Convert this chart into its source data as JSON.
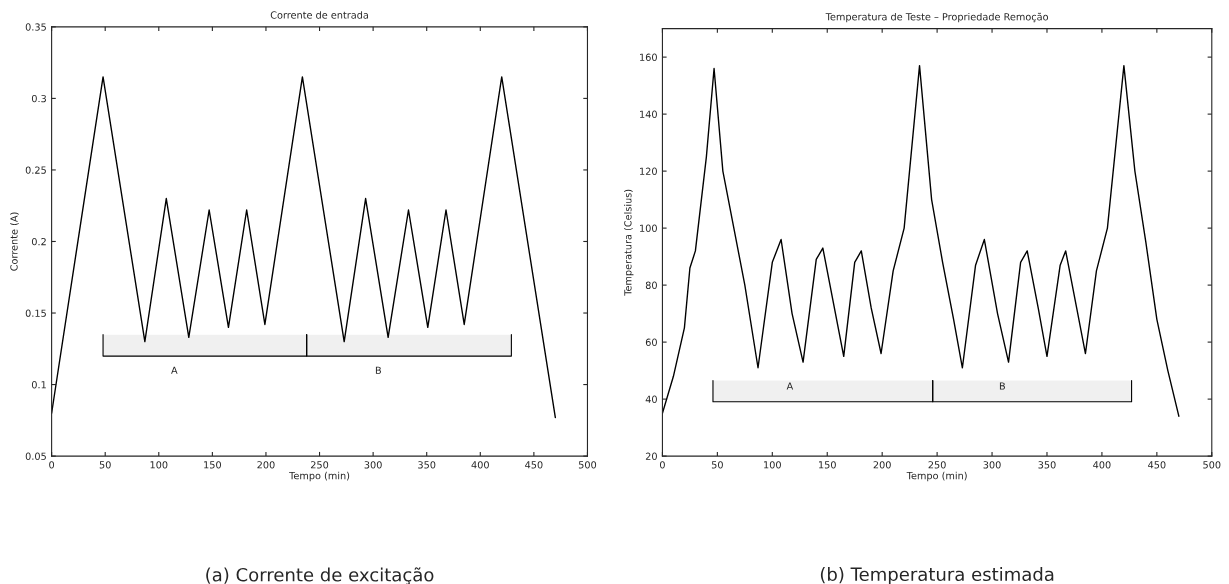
{
  "chart_data": [
    {
      "type": "line",
      "title": "Corrente de entrada",
      "xlabel": "Tempo (min)",
      "ylabel": "Corrente (A)",
      "x": [
        0,
        48,
        87,
        107,
        128,
        147,
        165,
        182,
        199,
        234,
        273,
        293,
        314,
        333,
        351,
        368,
        385,
        420,
        470
      ],
      "series": [
        {
          "color": "#000000",
          "values": [
            0.08,
            0.315,
            0.13,
            0.23,
            0.133,
            0.222,
            0.14,
            0.222,
            0.142,
            0.315,
            0.13,
            0.23,
            0.133,
            0.222,
            0.14,
            0.222,
            0.142,
            0.315,
            0.077
          ]
        }
      ],
      "xlim": [
        0,
        500
      ],
      "xticks": [
        0,
        50,
        100,
        150,
        200,
        250,
        300,
        350,
        400,
        450,
        500
      ],
      "ylim": [
        0.05,
        0.35
      ],
      "yticks": [
        0.05,
        0.1,
        0.15,
        0.2,
        0.25,
        0.3,
        0.35
      ],
      "bands": [
        {
          "axis": "x",
          "from": 48,
          "to": 238,
          "label": "A"
        },
        {
          "axis": "x",
          "from": 238,
          "to": 429,
          "label": "B"
        }
      ],
      "annotations": [
        "(a) Corrente de excitação"
      ]
    },
    {
      "type": "line",
      "title": "Temperatura de Teste – Propriedade Remoção",
      "xlabel": "Tempo (min)",
      "ylabel": "Temperatura (Celsius)",
      "x": [
        0,
        10,
        20,
        25,
        30,
        40,
        47,
        55,
        65,
        75,
        87,
        100,
        108,
        118,
        128,
        140,
        146,
        155,
        165,
        175,
        181,
        190,
        199,
        210,
        220,
        234,
        245,
        255,
        265,
        273,
        285,
        293,
        305,
        315,
        326,
        332,
        342,
        350,
        362,
        367,
        377,
        385,
        395,
        405,
        420,
        430,
        440,
        450,
        460,
        470
      ],
      "series": [
        {
          "color": "#000000",
          "values": [
            35,
            48,
            65,
            86,
            92,
            125,
            156,
            120,
            100,
            80,
            51,
            88,
            96,
            70,
            53,
            89,
            93,
            75,
            55,
            88,
            92,
            72,
            56,
            85,
            100,
            157,
            110,
            88,
            68,
            51,
            87,
            96,
            70,
            53,
            88,
            92,
            72,
            55,
            87,
            92,
            72,
            56,
            85,
            100,
            157,
            120,
            95,
            68,
            50,
            34
          ]
        }
      ],
      "xlim": [
        0,
        500
      ],
      "xticks": [
        0,
        50,
        100,
        150,
        200,
        250,
        300,
        350,
        400,
        450,
        500
      ],
      "ylim": [
        20,
        170
      ],
      "yticks": [
        20,
        40,
        60,
        80,
        100,
        120,
        140,
        160
      ],
      "bands": [
        {
          "axis": "x",
          "from": 46,
          "to": 246,
          "label": "A"
        },
        {
          "axis": "x",
          "from": 246,
          "to": 427,
          "label": "B"
        }
      ],
      "annotations": [
        "(b) Temperatura estimada"
      ]
    }
  ]
}
